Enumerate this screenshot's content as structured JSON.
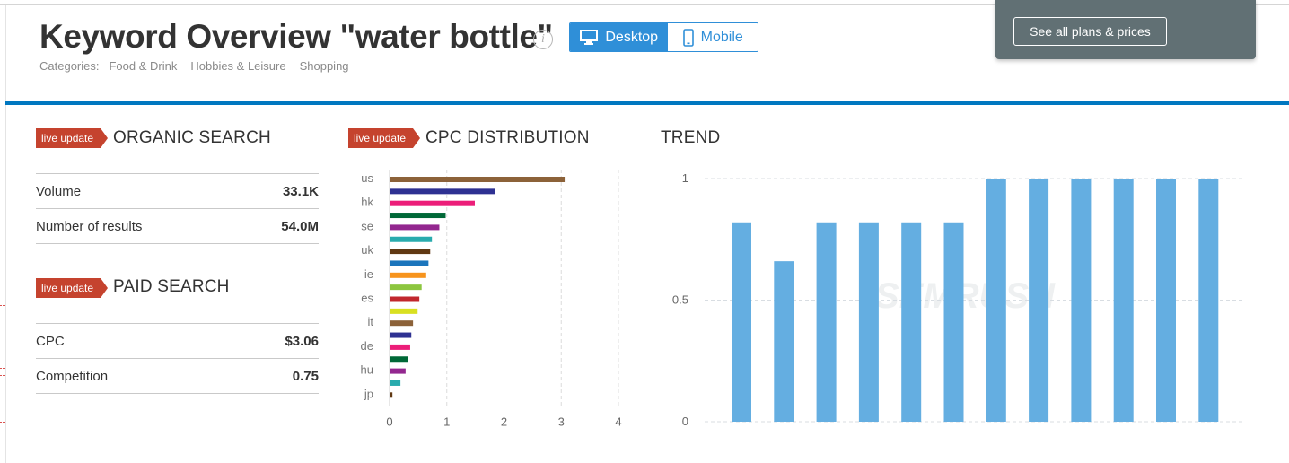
{
  "header": {
    "title": "Keyword Overview \"water bottle\"",
    "info_icon": "i",
    "categories_label": "Categories:",
    "categories": [
      "Food & Drink",
      "Hobbies & Leisure",
      "Shopping"
    ]
  },
  "device_toggle": {
    "desktop_label": "Desktop",
    "mobile_label": "Mobile",
    "selected": "Desktop"
  },
  "popup": {
    "button_label": "See all plans & prices"
  },
  "organic_search": {
    "badge": "live update",
    "title": "ORGANIC SEARCH",
    "rows": [
      {
        "label": "Volume",
        "value": "33.1K"
      },
      {
        "label": "Number of results",
        "value": "54.0M"
      }
    ]
  },
  "paid_search": {
    "badge": "live update",
    "title": "PAID SEARCH",
    "rows": [
      {
        "label": "CPC",
        "value": "$3.06"
      },
      {
        "label": "Competition",
        "value": "0.75"
      }
    ]
  },
  "cpc_distribution": {
    "badge": "live update",
    "title": "CPC DISTRIBUTION"
  },
  "trend": {
    "title": "TREND"
  },
  "colors": {
    "accent_blue": "#2f8fd8",
    "header_bar": "#0077c0",
    "badge": "#c5432e",
    "trend_bar": "#64aee1"
  },
  "chart_data": [
    {
      "type": "bar",
      "orientation": "horizontal",
      "categories": [
        "us",
        "",
        "hk",
        "",
        "se",
        "",
        "uk",
        "",
        "ie",
        "",
        "es",
        "",
        "it",
        "",
        "de",
        "",
        "hu",
        "",
        "jp"
      ],
      "values": [
        3.06,
        1.85,
        1.49,
        0.98,
        0.87,
        0.74,
        0.71,
        0.68,
        0.64,
        0.56,
        0.52,
        0.49,
        0.41,
        0.38,
        0.36,
        0.32,
        0.28,
        0.19,
        0.05
      ],
      "bar_colors": [
        "#8c6239",
        "#2e3192",
        "#ec1e79",
        "#006837",
        "#93278f",
        "#29abad",
        "#603813",
        "#1b75bc",
        "#f7941d",
        "#8cc63f",
        "#c1272d",
        "#d9e021",
        "#8c6239",
        "#2e3192",
        "#ec1e79",
        "#006837",
        "#93278f",
        "#29abad",
        "#603813"
      ],
      "xticks": [
        0,
        1,
        2,
        3,
        4
      ],
      "xlim": [
        0,
        4
      ],
      "grid": true
    },
    {
      "type": "bar",
      "values": [
        0.82,
        0.66,
        0.82,
        0.82,
        0.82,
        0.82,
        1,
        1,
        1,
        1,
        1,
        1
      ],
      "yticks": [
        "0",
        "0.5",
        "1"
      ],
      "ylim": [
        0,
        1
      ],
      "grid": true
    }
  ]
}
